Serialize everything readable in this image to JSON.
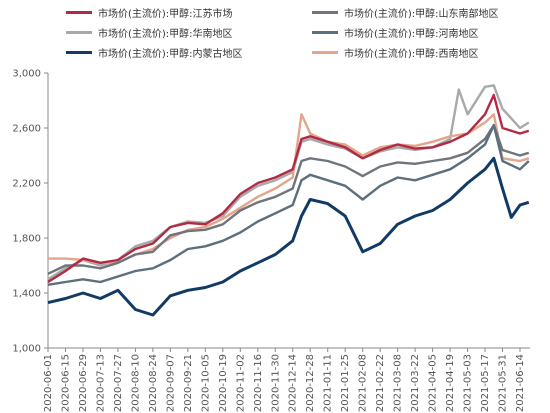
{
  "chart_data": {
    "type": "line",
    "xlabel": "",
    "ylabel": "",
    "ylim": [
      1000,
      3000
    ],
    "yticks": [
      "1,000",
      "1,400",
      "1,800",
      "2,200",
      "2,600",
      "3,000"
    ],
    "grid": false,
    "legend_position": "top",
    "x_tick_labels": [
      "2020-06-01",
      "2020-06-15",
      "2020-06-29",
      "2020-07-13",
      "2020-07-27",
      "2020-08-10",
      "2020-08-24",
      "2020-09-07",
      "2020-09-21",
      "2020-10-05",
      "2020-10-19",
      "2020-11-02",
      "2020-11-16",
      "2020-11-30",
      "2020-12-14",
      "2020-12-28",
      "2021-01-11",
      "2021-01-25",
      "2021-02-08",
      "2021-02-22",
      "2021-03-08",
      "2021-03-22",
      "2021-04-05",
      "2021-04-19",
      "2021-05-03",
      "2021-05-17",
      "2021-05-31",
      "2021-06-14"
    ],
    "series": [
      {
        "name": "市场价(主流价):甲醇:江苏市场",
        "color": "#b22a44",
        "x": [
          "2020-06-01",
          "2020-06-15",
          "2020-06-29",
          "2020-07-13",
          "2020-07-27",
          "2020-08-10",
          "2020-08-24",
          "2020-09-07",
          "2020-09-21",
          "2020-10-05",
          "2020-10-19",
          "2020-11-02",
          "2020-11-16",
          "2020-11-30",
          "2020-12-14",
          "2020-12-21",
          "2020-12-28",
          "2021-01-11",
          "2021-01-25",
          "2021-02-08",
          "2021-02-22",
          "2021-03-08",
          "2021-03-22",
          "2021-04-05",
          "2021-04-19",
          "2021-05-03",
          "2021-05-17",
          "2021-05-24",
          "2021-05-31",
          "2021-06-14",
          "2021-06-21"
        ],
        "values": [
          1480,
          1560,
          1650,
          1620,
          1640,
          1720,
          1760,
          1880,
          1910,
          1900,
          1980,
          2120,
          2200,
          2240,
          2300,
          2520,
          2540,
          2500,
          2460,
          2380,
          2440,
          2480,
          2450,
          2460,
          2500,
          2560,
          2700,
          2840,
          2600,
          2560,
          2580
        ]
      },
      {
        "name": "市场价(主流价):甲醇:山东南部地区",
        "color": "#6f757b",
        "x": [
          "2020-06-01",
          "2020-06-15",
          "2020-06-29",
          "2020-07-13",
          "2020-07-27",
          "2020-08-10",
          "2020-08-24",
          "2020-09-07",
          "2020-09-21",
          "2020-10-05",
          "2020-10-19",
          "2020-11-02",
          "2020-11-16",
          "2020-11-30",
          "2020-12-14",
          "2020-12-21",
          "2020-12-28",
          "2021-01-11",
          "2021-01-25",
          "2021-02-08",
          "2021-02-22",
          "2021-03-08",
          "2021-03-22",
          "2021-04-05",
          "2021-04-19",
          "2021-05-03",
          "2021-05-17",
          "2021-05-24",
          "2021-05-31",
          "2021-06-14",
          "2021-06-21"
        ],
        "values": [
          1540,
          1600,
          1600,
          1580,
          1620,
          1680,
          1700,
          1820,
          1850,
          1860,
          1900,
          2000,
          2060,
          2100,
          2160,
          2360,
          2380,
          2360,
          2320,
          2250,
          2320,
          2350,
          2340,
          2360,
          2380,
          2420,
          2520,
          2620,
          2440,
          2400,
          2420
        ]
      },
      {
        "name": "市场价(主流价):甲醇:华南地区",
        "color": "#a9a9a9",
        "x": [
          "2020-06-01",
          "2020-06-15",
          "2020-06-29",
          "2020-07-13",
          "2020-07-27",
          "2020-08-10",
          "2020-08-24",
          "2020-09-07",
          "2020-09-21",
          "2020-10-05",
          "2020-10-19",
          "2020-11-02",
          "2020-11-16",
          "2020-11-30",
          "2020-12-14",
          "2020-12-21",
          "2020-12-28",
          "2021-01-11",
          "2021-01-25",
          "2021-02-08",
          "2021-02-22",
          "2021-03-08",
          "2021-03-22",
          "2021-04-05",
          "2021-04-19",
          "2021-04-26",
          "2021-05-03",
          "2021-05-17",
          "2021-05-24",
          "2021-05-31",
          "2021-06-14",
          "2021-06-21"
        ],
        "values": [
          1500,
          1580,
          1640,
          1600,
          1640,
          1740,
          1780,
          1880,
          1920,
          1910,
          1960,
          2100,
          2180,
          2220,
          2280,
          2500,
          2520,
          2480,
          2450,
          2380,
          2430,
          2460,
          2440,
          2460,
          2520,
          2880,
          2700,
          2900,
          2910,
          2740,
          2600,
          2640
        ]
      },
      {
        "name": "市场价(主流价):甲醇:河南地区",
        "color": "#5b6f7c",
        "x": [
          "2020-06-01",
          "2020-06-15",
          "2020-06-29",
          "2020-07-13",
          "2020-07-27",
          "2020-08-10",
          "2020-08-24",
          "2020-09-07",
          "2020-09-21",
          "2020-10-05",
          "2020-10-19",
          "2020-11-02",
          "2020-11-16",
          "2020-11-30",
          "2020-12-14",
          "2020-12-21",
          "2020-12-28",
          "2021-01-11",
          "2021-01-25",
          "2021-02-08",
          "2021-02-22",
          "2021-03-08",
          "2021-03-22",
          "2021-04-05",
          "2021-04-19",
          "2021-05-03",
          "2021-05-17",
          "2021-05-24",
          "2021-05-31",
          "2021-06-14",
          "2021-06-21"
        ],
        "values": [
          1460,
          1480,
          1500,
          1480,
          1520,
          1560,
          1580,
          1640,
          1720,
          1740,
          1780,
          1840,
          1920,
          1980,
          2040,
          2220,
          2260,
          2220,
          2180,
          2080,
          2180,
          2240,
          2220,
          2260,
          2300,
          2380,
          2480,
          2620,
          2360,
          2300,
          2360
        ]
      },
      {
        "name": "市场价(主流价):甲醇:内蒙古地区",
        "color": "#123a66",
        "x": [
          "2020-06-01",
          "2020-06-15",
          "2020-06-29",
          "2020-07-13",
          "2020-07-27",
          "2020-08-10",
          "2020-08-24",
          "2020-09-07",
          "2020-09-21",
          "2020-10-05",
          "2020-10-19",
          "2020-11-02",
          "2020-11-16",
          "2020-11-30",
          "2020-12-14",
          "2020-12-21",
          "2020-12-28",
          "2021-01-11",
          "2021-01-25",
          "2021-02-08",
          "2021-02-22",
          "2021-03-08",
          "2021-03-22",
          "2021-04-05",
          "2021-04-19",
          "2021-05-03",
          "2021-05-17",
          "2021-05-24",
          "2021-05-31",
          "2021-06-07",
          "2021-06-14",
          "2021-06-21"
        ],
        "values": [
          1330,
          1360,
          1400,
          1360,
          1420,
          1280,
          1240,
          1380,
          1420,
          1440,
          1480,
          1560,
          1620,
          1680,
          1780,
          1960,
          2080,
          2050,
          1960,
          1700,
          1760,
          1900,
          1960,
          2000,
          2080,
          2200,
          2300,
          2380,
          2160,
          1950,
          2040,
          2060
        ]
      },
      {
        "name": "市场价(主流价):甲醇:西南地区",
        "color": "#e3a58c",
        "x": [
          "2020-06-01",
          "2020-06-15",
          "2020-06-29",
          "2020-07-13",
          "2020-07-27",
          "2020-08-10",
          "2020-08-24",
          "2020-09-07",
          "2020-09-21",
          "2020-10-05",
          "2020-10-19",
          "2020-11-02",
          "2020-11-16",
          "2020-11-30",
          "2020-12-14",
          "2020-12-21",
          "2020-12-28",
          "2021-01-11",
          "2021-01-25",
          "2021-02-08",
          "2021-02-22",
          "2021-03-08",
          "2021-03-22",
          "2021-04-05",
          "2021-04-19",
          "2021-05-03",
          "2021-05-17",
          "2021-05-24",
          "2021-05-31",
          "2021-06-14",
          "2021-06-21"
        ],
        "values": [
          1650,
          1650,
          1640,
          1620,
          1620,
          1680,
          1720,
          1800,
          1860,
          1880,
          1940,
          2020,
          2100,
          2160,
          2240,
          2700,
          2560,
          2500,
          2480,
          2400,
          2460,
          2480,
          2470,
          2500,
          2540,
          2560,
          2640,
          2700,
          2380,
          2360,
          2380
        ]
      }
    ]
  }
}
